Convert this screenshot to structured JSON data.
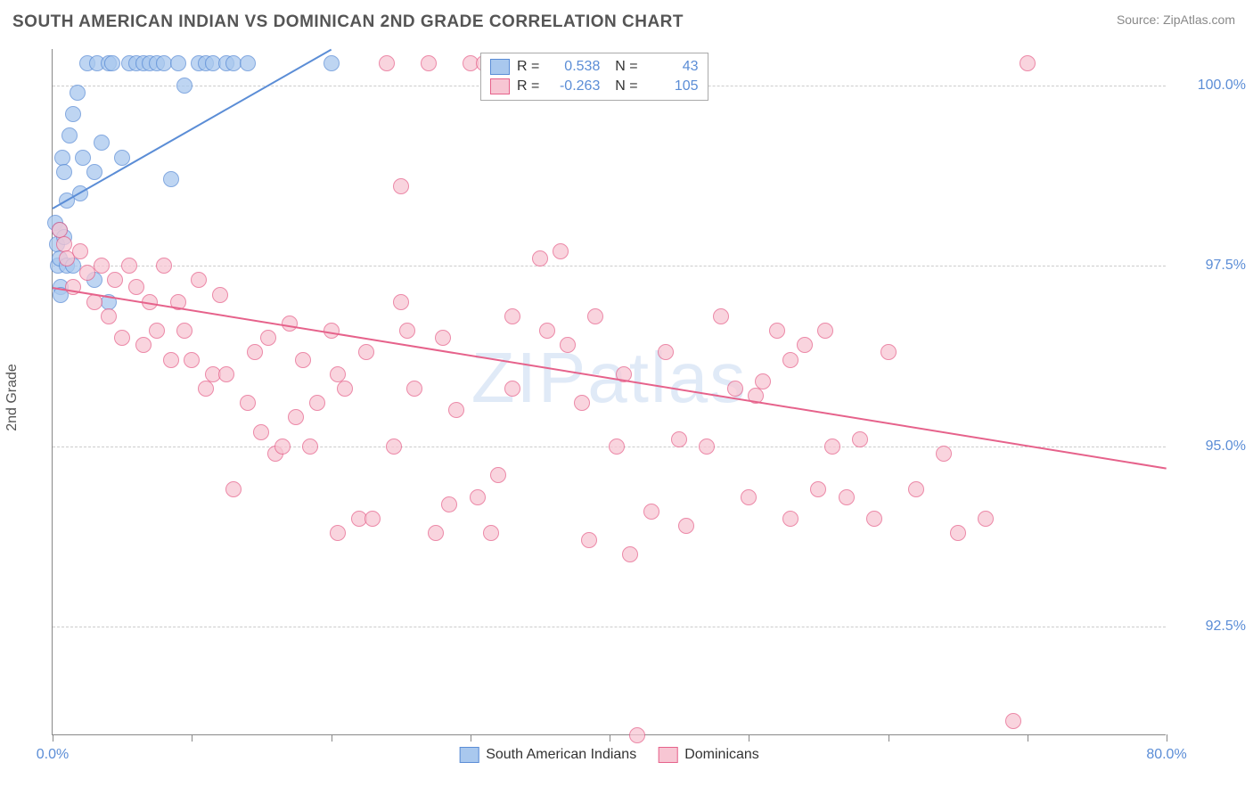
{
  "title": "SOUTH AMERICAN INDIAN VS DOMINICAN 2ND GRADE CORRELATION CHART",
  "source": "Source: ZipAtlas.com",
  "watermark": "ZIPatlas",
  "ylabel": "2nd Grade",
  "chart": {
    "type": "scatter",
    "background_color": "#ffffff",
    "grid_color": "#cccccc",
    "axis_color": "#888888",
    "tick_label_color": "#5b8dd6",
    "tick_fontsize": 16,
    "title_fontsize": 19,
    "title_color": "#555555",
    "marker_radius": 9,
    "marker_stroke_width": 1.5,
    "marker_fill_opacity": 0.25,
    "trend_line_width": 2,
    "xlim": [
      0,
      80
    ],
    "ylim": [
      91,
      100.5
    ],
    "xticks": [
      0,
      10,
      20,
      30,
      40,
      50,
      60,
      70,
      80
    ],
    "xtick_labels": {
      "0": "0.0%",
      "80": "80.0%"
    },
    "yticks": [
      92.5,
      95.0,
      97.5,
      100.0
    ],
    "ytick_labels": [
      "92.5%",
      "95.0%",
      "97.5%",
      "100.0%"
    ],
    "series": [
      {
        "name": "South American Indians",
        "fill": "#a9c8ee",
        "stroke": "#5b8dd6",
        "R": "0.538",
        "N": "43",
        "trend": {
          "x1": 0,
          "y1": 98.3,
          "x2": 20,
          "y2": 100.5
        },
        "points": [
          [
            0.2,
            98.1
          ],
          [
            0.3,
            97.8
          ],
          [
            0.4,
            97.5
          ],
          [
            0.5,
            97.6
          ],
          [
            0.5,
            98.0
          ],
          [
            0.6,
            97.2
          ],
          [
            0.7,
            99.0
          ],
          [
            0.8,
            98.8
          ],
          [
            1.0,
            98.4
          ],
          [
            1.2,
            99.3
          ],
          [
            1.5,
            99.6
          ],
          [
            1.8,
            99.9
          ],
          [
            2.0,
            98.5
          ],
          [
            2.2,
            99.0
          ],
          [
            2.5,
            100.3
          ],
          [
            3.0,
            98.8
          ],
          [
            3.2,
            100.3
          ],
          [
            3.5,
            99.2
          ],
          [
            4.0,
            100.3
          ],
          [
            4.3,
            100.3
          ],
          [
            5.0,
            99.0
          ],
          [
            5.5,
            100.3
          ],
          [
            6.0,
            100.3
          ],
          [
            6.5,
            100.3
          ],
          [
            7.0,
            100.3
          ],
          [
            7.5,
            100.3
          ],
          [
            8.0,
            100.3
          ],
          [
            8.5,
            98.7
          ],
          [
            9.0,
            100.3
          ],
          [
            9.5,
            100.0
          ],
          [
            10.5,
            100.3
          ],
          [
            11.0,
            100.3
          ],
          [
            11.5,
            100.3
          ],
          [
            12.5,
            100.3
          ],
          [
            13.0,
            100.3
          ],
          [
            14.0,
            100.3
          ],
          [
            20.0,
            100.3
          ],
          [
            0.6,
            97.1
          ],
          [
            0.8,
            97.9
          ],
          [
            1.0,
            97.5
          ],
          [
            1.5,
            97.5
          ],
          [
            3.0,
            97.3
          ],
          [
            4.0,
            97.0
          ]
        ]
      },
      {
        "name": "Dominicans",
        "fill": "#f7c6d3",
        "stroke": "#e6628b",
        "R": "-0.263",
        "N": "105",
        "trend": {
          "x1": 0,
          "y1": 97.2,
          "x2": 80,
          "y2": 94.7
        },
        "points": [
          [
            0.5,
            98.0
          ],
          [
            0.8,
            97.8
          ],
          [
            1.0,
            97.6
          ],
          [
            1.5,
            97.2
          ],
          [
            2.0,
            97.7
          ],
          [
            2.5,
            97.4
          ],
          [
            3.0,
            97.0
          ],
          [
            3.5,
            97.5
          ],
          [
            4.0,
            96.8
          ],
          [
            4.5,
            97.3
          ],
          [
            5.0,
            96.5
          ],
          [
            5.5,
            97.5
          ],
          [
            6.0,
            97.2
          ],
          [
            6.5,
            96.4
          ],
          [
            7.0,
            97.0
          ],
          [
            7.5,
            96.6
          ],
          [
            8.0,
            97.5
          ],
          [
            8.5,
            96.2
          ],
          [
            9.0,
            97.0
          ],
          [
            9.5,
            96.6
          ],
          [
            10.0,
            96.2
          ],
          [
            10.5,
            97.3
          ],
          [
            11.0,
            95.8
          ],
          [
            11.5,
            96.0
          ],
          [
            12.0,
            97.1
          ],
          [
            12.5,
            96.0
          ],
          [
            13.0,
            94.4
          ],
          [
            14.0,
            95.6
          ],
          [
            14.5,
            96.3
          ],
          [
            15.0,
            95.2
          ],
          [
            15.5,
            96.5
          ],
          [
            16.0,
            94.9
          ],
          [
            16.5,
            95.0
          ],
          [
            17.0,
            96.7
          ],
          [
            17.5,
            95.4
          ],
          [
            18.0,
            96.2
          ],
          [
            19.0,
            95.6
          ],
          [
            20.0,
            96.6
          ],
          [
            20.5,
            93.8
          ],
          [
            21.0,
            95.8
          ],
          [
            22.0,
            94.0
          ],
          [
            22.5,
            96.3
          ],
          [
            23.0,
            94.0
          ],
          [
            24.0,
            100.3
          ],
          [
            24.5,
            95.0
          ],
          [
            25.0,
            98.6
          ],
          [
            25.5,
            96.6
          ],
          [
            26.0,
            95.8
          ],
          [
            27.0,
            100.3
          ],
          [
            27.5,
            93.8
          ],
          [
            28.0,
            96.5
          ],
          [
            28.5,
            94.2
          ],
          [
            29.0,
            95.5
          ],
          [
            30.0,
            100.3
          ],
          [
            30.5,
            94.3
          ],
          [
            31.0,
            100.3
          ],
          [
            31.5,
            93.8
          ],
          [
            32.0,
            94.6
          ],
          [
            33.0,
            95.8
          ],
          [
            34.0,
            100.3
          ],
          [
            35.0,
            97.6
          ],
          [
            35.5,
            96.6
          ],
          [
            36.0,
            100.0
          ],
          [
            36.5,
            97.7
          ],
          [
            37.0,
            96.4
          ],
          [
            38.0,
            95.6
          ],
          [
            38.5,
            93.7
          ],
          [
            39.0,
            96.8
          ],
          [
            40.0,
            100.3
          ],
          [
            40.5,
            95.0
          ],
          [
            41.0,
            96.0
          ],
          [
            41.5,
            93.5
          ],
          [
            42.0,
            91.0
          ],
          [
            43.0,
            94.1
          ],
          [
            44.0,
            96.3
          ],
          [
            45.0,
            95.1
          ],
          [
            45.5,
            93.9
          ],
          [
            46.0,
            100.3
          ],
          [
            47.0,
            95.0
          ],
          [
            48.0,
            96.8
          ],
          [
            49.0,
            95.8
          ],
          [
            50.0,
            94.3
          ],
          [
            51.0,
            95.9
          ],
          [
            52.0,
            96.6
          ],
          [
            53.0,
            94.0
          ],
          [
            54.0,
            96.4
          ],
          [
            55.0,
            94.4
          ],
          [
            55.5,
            96.6
          ],
          [
            56.0,
            95.0
          ],
          [
            57.0,
            94.3
          ],
          [
            58.0,
            95.1
          ],
          [
            59.0,
            94.0
          ],
          [
            60.0,
            96.3
          ],
          [
            62.0,
            94.4
          ],
          [
            64.0,
            94.9
          ],
          [
            65.0,
            93.8
          ],
          [
            67.0,
            94.0
          ],
          [
            69.0,
            91.2
          ],
          [
            70.0,
            100.3
          ],
          [
            50.5,
            95.7
          ],
          [
            53.0,
            96.2
          ],
          [
            33.0,
            96.8
          ],
          [
            25.0,
            97.0
          ],
          [
            18.5,
            95.0
          ],
          [
            20.5,
            96.0
          ]
        ]
      }
    ]
  }
}
